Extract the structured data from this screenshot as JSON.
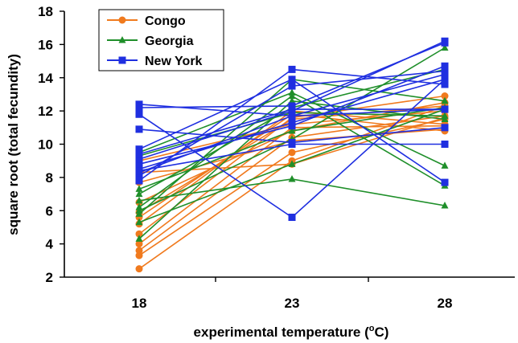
{
  "chart_data": {
    "type": "line",
    "xlabel_main": "experimental temperature (",
    "xlabel_sup": "o",
    "xlabel_tail": "C)",
    "ylabel": "square root (total fecundity)",
    "categories": [
      "18",
      "23",
      "28"
    ],
    "ylim": [
      2,
      18
    ],
    "yticks": [
      "2",
      "4",
      "6",
      "8",
      "10",
      "12",
      "14",
      "16",
      "18"
    ],
    "grid": false,
    "legend_position": "top-left",
    "series": [
      {
        "name": "Congo",
        "color": "#F07A1E",
        "marker": "circle",
        "lines": [
          [
            2.5,
            9.0,
            12.3
          ],
          [
            3.3,
            9.5,
            11.5
          ],
          [
            3.6,
            10.4,
            11.7
          ],
          [
            4.0,
            11.0,
            11.1
          ],
          [
            4.6,
            11.6,
            12.9
          ],
          [
            5.2,
            12.0,
            11.2
          ],
          [
            5.9,
            11.5,
            12.3
          ],
          [
            6.5,
            10.8,
            12.5
          ],
          [
            7.7,
            10.2,
            10.9
          ],
          [
            8.3,
            8.8,
            11.6
          ],
          [
            9.0,
            11.2,
            12.0
          ],
          [
            5.6,
            11.8,
            10.8
          ]
        ]
      },
      {
        "name": "Georgia",
        "color": "#1F8F2A",
        "marker": "triangle",
        "lines": [
          [
            4.3,
            12.6,
            11.5
          ],
          [
            5.3,
            8.8,
            12.1
          ],
          [
            6.0,
            10.3,
            15.8
          ],
          [
            6.2,
            12.9,
            7.5
          ],
          [
            6.6,
            7.9,
            6.3
          ],
          [
            7.0,
            12.2,
            14.5
          ],
          [
            9.5,
            13.1,
            8.7
          ],
          [
            9.3,
            11.9,
            11.7
          ],
          [
            5.8,
            13.9,
            12.6
          ],
          [
            7.3,
            10.8,
            12.2
          ]
        ]
      },
      {
        "name": "New York",
        "color": "#1F2FE0",
        "marker": "square",
        "lines": [
          [
            7.8,
            14.5,
            13.6
          ],
          [
            8.1,
            13.5,
            14.4
          ],
          [
            8.3,
            11.7,
            12.1
          ],
          [
            8.5,
            11.3,
            13.9
          ],
          [
            8.8,
            11.1,
            14.7
          ],
          [
            9.1,
            12.0,
            16.2
          ],
          [
            9.4,
            12.1,
            12.1
          ],
          [
            9.7,
            13.9,
            7.7
          ],
          [
            10.9,
            10.1,
            11.0
          ],
          [
            11.8,
            5.6,
            13.9
          ],
          [
            12.2,
            12.3,
            16.1
          ],
          [
            12.4,
            11.7,
            14.2
          ],
          [
            8.4,
            10.0,
            10.0
          ]
        ]
      }
    ]
  }
}
